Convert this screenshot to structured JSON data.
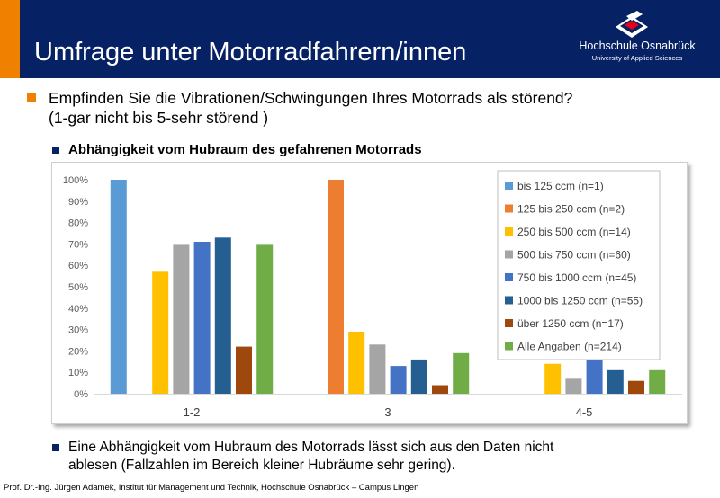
{
  "slide": {
    "title": "Umfrage unter Motorradfahrern/innen",
    "bullet_main_line1": "Empfinden Sie die Vibrationen/Schwingungen Ihres Motorrads als störend?",
    "bullet_main_line2": "(1-gar nicht bis 5-sehr störend )",
    "sub_bullet": "Abhängigkeit vom Hubraum des gefahrenen Motorrads",
    "conclusion_line1": "Eine Abhängigkeit vom Hubraum des Motorrads lässt sich aus den Daten nicht",
    "conclusion_line2": "ablesen (Fallzahlen im Bereich kleiner Hubräume sehr gering).",
    "footer": "Prof. Dr.-Ing. Jürgen Adamek,  Institut für Management und Technik, Hochschule Osnabrück – Campus Lingen"
  },
  "logo": {
    "name": "Hochschule Osnabrück",
    "subtitle": "University of Applied Sciences"
  },
  "colors": {
    "header": "#072264",
    "accent": "#f08000"
  },
  "chart_data": {
    "type": "bar",
    "categories": [
      "1-2",
      "3",
      "4-5"
    ],
    "ylim": [
      0,
      100
    ],
    "y_ticks": [
      "0%",
      "10%",
      "20%",
      "30%",
      "40%",
      "50%",
      "60%",
      "70%",
      "80%",
      "90%",
      "100%"
    ],
    "grid": false,
    "legend_position": "top-right",
    "series": [
      {
        "name": "bis 125 ccm (n=1)",
        "color": "#5b9bd5",
        "values": [
          100,
          0,
          0
        ]
      },
      {
        "name": "125 bis 250 ccm (n=2)",
        "color": "#ed7d31",
        "values": [
          0,
          100,
          0
        ]
      },
      {
        "name": "250 bis 500 ccm (n=14)",
        "color": "#ffc000",
        "values": [
          57,
          29,
          14
        ]
      },
      {
        "name": "500 bis 750 ccm (n=60)",
        "color": "#a5a5a5",
        "values": [
          70,
          23,
          7
        ]
      },
      {
        "name": "750 bis 1000 ccm (n=45)",
        "color": "#4472c4",
        "values": [
          71,
          13,
          16
        ]
      },
      {
        "name": "1000 bis 1250 ccm (n=55)",
        "color": "#255e91",
        "values": [
          73,
          16,
          11
        ]
      },
      {
        "name": "über 1250 ccm (n=17)",
        "color": "#9e480e",
        "values": [
          22,
          4,
          6
        ]
      },
      {
        "name": "Alle Angaben (n=214)",
        "color": "#70ad47",
        "values": [
          70,
          19,
          11
        ]
      }
    ]
  }
}
